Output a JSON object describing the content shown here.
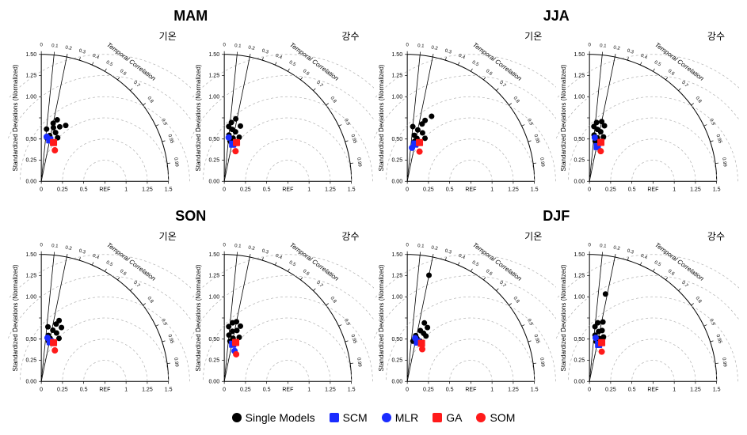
{
  "figure": {
    "type": "taylor-diagram-grid",
    "rows": 2,
    "cols": 4,
    "aspect": "square",
    "row_titles": [
      {
        "label": "MAM",
        "fontsize": 18,
        "fontweight": "bold",
        "span": 2
      },
      {
        "label": "JJA",
        "fontsize": 18,
        "fontweight": "bold",
        "span": 2
      },
      {
        "label": "SON",
        "fontsize": 18,
        "fontweight": "bold",
        "span": 2
      },
      {
        "label": "DJF",
        "fontsize": 18,
        "fontweight": "bold",
        "span": 2
      }
    ],
    "panel_labels": {
      "temp": "기온",
      "precip": "강수",
      "fontsize": 12
    },
    "axes": {
      "radial": {
        "label": "Standardized Deviations (Normalized)",
        "label_fontsize": 8,
        "ticks": [
          0.0,
          0.25,
          0.5,
          "REF",
          1.0,
          1.25,
          1.5
        ],
        "tick_values": [
          0.0,
          0.25,
          0.5,
          0.75,
          1.0,
          1.25,
          1.5
        ],
        "tick_fontsize": 7,
        "color": "#000000",
        "ref_value": 0.75
      },
      "angular": {
        "label": "Temporal Correlation",
        "label_fontsize": 8,
        "ticks": [
          0.0,
          0.1,
          0.2,
          0.3,
          0.4,
          0.5,
          0.6,
          0.7,
          0.8,
          0.9,
          0.95,
          0.99
        ],
        "tick_fontsize": 6,
        "color": "#000000"
      },
      "rmse_arcs": {
        "values": [
          0.25,
          0.5,
          0.75,
          1.0,
          1.25,
          1.5
        ],
        "stroke": "#b0b0b0",
        "dash": "3,3",
        "linewidth": 0.7
      },
      "corr_spokes": {
        "solid_at": [
          0.1,
          0.2
        ],
        "stroke": "#000000",
        "linewidth": 0.8
      },
      "outer_arc": {
        "stroke": "#000000",
        "linewidth": 1.0
      },
      "background": "#ffffff"
    },
    "series_styles": {
      "single": {
        "shape": "circle",
        "fill": "#000000",
        "size": 7
      },
      "scm": {
        "shape": "square",
        "fill": "#1a2cff",
        "size": 9
      },
      "mlr": {
        "shape": "circle",
        "fill": "#1a2cff",
        "size": 8
      },
      "ga": {
        "shape": "square",
        "fill": "#ff1a1a",
        "size": 9
      },
      "som": {
        "shape": "circle",
        "fill": "#ff1a1a",
        "size": 8
      }
    },
    "legend": {
      "items": [
        {
          "key": "single",
          "label": "Single Models"
        },
        {
          "key": "scm",
          "label": "SCM"
        },
        {
          "key": "mlr",
          "label": "MLR"
        },
        {
          "key": "ga",
          "label": "GA"
        },
        {
          "key": "som",
          "label": "SOM"
        }
      ],
      "fontsize": 14
    },
    "panels": [
      {
        "row": 0,
        "col": 0,
        "group": "MAM",
        "var": "temp",
        "single": [
          {
            "sd": 0.55,
            "corr": 0.18
          },
          {
            "sd": 0.62,
            "corr": 0.1
          },
          {
            "sd": 0.6,
            "corr": 0.28
          },
          {
            "sd": 0.7,
            "corr": 0.2
          },
          {
            "sd": 0.68,
            "corr": 0.32
          },
          {
            "sd": 0.72,
            "corr": 0.4
          },
          {
            "sd": 0.55,
            "corr": 0.35
          },
          {
            "sd": 0.65,
            "corr": 0.22
          },
          {
            "sd": 0.52,
            "corr": 0.12
          },
          {
            "sd": 0.75,
            "corr": 0.25
          }
        ],
        "scm": {
          "sd": 0.5,
          "corr": 0.2
        },
        "mlr": {
          "sd": 0.53,
          "corr": 0.12
        },
        "ga": {
          "sd": 0.48,
          "corr": 0.3
        },
        "som": {
          "sd": 0.4,
          "corr": 0.4
        }
      },
      {
        "row": 0,
        "col": 1,
        "group": "MAM",
        "var": "precip",
        "single": [
          {
            "sd": 0.55,
            "corr": 0.1
          },
          {
            "sd": 0.62,
            "corr": 0.15
          },
          {
            "sd": 0.6,
            "corr": 0.22
          },
          {
            "sd": 0.7,
            "corr": 0.12
          },
          {
            "sd": 0.68,
            "corr": 0.28
          },
          {
            "sd": 0.52,
            "corr": 0.2
          },
          {
            "sd": 0.55,
            "corr": 0.32
          },
          {
            "sd": 0.65,
            "corr": 0.08
          },
          {
            "sd": 0.48,
            "corr": 0.14
          },
          {
            "sd": 0.75,
            "corr": 0.18
          }
        ],
        "scm": {
          "sd": 0.45,
          "corr": 0.22
        },
        "mlr": {
          "sd": 0.52,
          "corr": 0.1
        },
        "ga": {
          "sd": 0.48,
          "corr": 0.3
        },
        "som": {
          "sd": 0.38,
          "corr": 0.35
        }
      },
      {
        "row": 0,
        "col": 2,
        "group": "JJA",
        "var": "temp",
        "single": [
          {
            "sd": 0.55,
            "corr": 0.15
          },
          {
            "sd": 0.62,
            "corr": 0.2
          },
          {
            "sd": 0.6,
            "corr": 0.3
          },
          {
            "sd": 0.7,
            "corr": 0.25
          },
          {
            "sd": 0.82,
            "corr": 0.35
          },
          {
            "sd": 0.52,
            "corr": 0.22
          },
          {
            "sd": 0.55,
            "corr": 0.38
          },
          {
            "sd": 0.65,
            "corr": 0.1
          },
          {
            "sd": 0.48,
            "corr": 0.18
          },
          {
            "sd": 0.75,
            "corr": 0.28
          }
        ],
        "scm": {
          "sd": 0.45,
          "corr": 0.2
        },
        "mlr": {
          "sd": 0.4,
          "corr": 0.14
        },
        "ga": {
          "sd": 0.48,
          "corr": 0.3
        },
        "som": {
          "sd": 0.38,
          "corr": 0.38
        }
      },
      {
        "row": 0,
        "col": 3,
        "group": "JJA",
        "var": "precip",
        "single": [
          {
            "sd": 0.55,
            "corr": 0.1
          },
          {
            "sd": 0.62,
            "corr": 0.15
          },
          {
            "sd": 0.6,
            "corr": 0.22
          },
          {
            "sd": 0.7,
            "corr": 0.12
          },
          {
            "sd": 0.68,
            "corr": 0.26
          },
          {
            "sd": 0.52,
            "corr": 0.18
          },
          {
            "sd": 0.55,
            "corr": 0.3
          },
          {
            "sd": 0.65,
            "corr": 0.08
          },
          {
            "sd": 0.48,
            "corr": 0.14
          },
          {
            "sd": 0.72,
            "corr": 0.2
          }
        ],
        "scm": {
          "sd": 0.42,
          "corr": 0.22
        },
        "mlr": {
          "sd": 0.52,
          "corr": 0.12
        },
        "ga": {
          "sd": 0.48,
          "corr": 0.28
        },
        "som": {
          "sd": 0.38,
          "corr": 0.35
        }
      },
      {
        "row": 1,
        "col": 0,
        "group": "SON",
        "var": "temp",
        "single": [
          {
            "sd": 0.55,
            "corr": 0.15
          },
          {
            "sd": 0.62,
            "corr": 0.22
          },
          {
            "sd": 0.6,
            "corr": 0.3
          },
          {
            "sd": 0.7,
            "corr": 0.25
          },
          {
            "sd": 0.68,
            "corr": 0.35
          },
          {
            "sd": 0.52,
            "corr": 0.2
          },
          {
            "sd": 0.55,
            "corr": 0.38
          },
          {
            "sd": 0.65,
            "corr": 0.12
          },
          {
            "sd": 0.48,
            "corr": 0.18
          },
          {
            "sd": 0.75,
            "corr": 0.28
          }
        ],
        "scm": {
          "sd": 0.48,
          "corr": 0.22
        },
        "mlr": {
          "sd": 0.52,
          "corr": 0.14
        },
        "ga": {
          "sd": 0.48,
          "corr": 0.3
        },
        "som": {
          "sd": 0.4,
          "corr": 0.4
        }
      },
      {
        "row": 1,
        "col": 1,
        "group": "SON",
        "var": "precip",
        "single": [
          {
            "sd": 0.55,
            "corr": 0.1
          },
          {
            "sd": 0.6,
            "corr": 0.16
          },
          {
            "sd": 0.62,
            "corr": 0.24
          },
          {
            "sd": 0.7,
            "corr": 0.14
          },
          {
            "sd": 0.68,
            "corr": 0.28
          },
          {
            "sd": 0.52,
            "corr": 0.2
          },
          {
            "sd": 0.55,
            "corr": 0.32
          },
          {
            "sd": 0.65,
            "corr": 0.08
          },
          {
            "sd": 0.48,
            "corr": 0.14
          },
          {
            "sd": 0.72,
            "corr": 0.2
          }
        ],
        "scm": {
          "sd": 0.45,
          "corr": 0.22
        },
        "mlr": {
          "sd": 0.38,
          "corr": 0.32
        },
        "ga": {
          "sd": 0.48,
          "corr": 0.28
        },
        "som": {
          "sd": 0.35,
          "corr": 0.4
        }
      },
      {
        "row": 1,
        "col": 2,
        "group": "DJF",
        "var": "temp",
        "single": [
          {
            "sd": 0.55,
            "corr": 0.18
          },
          {
            "sd": 0.62,
            "corr": 0.25
          },
          {
            "sd": 0.6,
            "corr": 0.32
          },
          {
            "sd": 0.72,
            "corr": 0.28
          },
          {
            "sd": 1.28,
            "corr": 0.2
          },
          {
            "sd": 0.52,
            "corr": 0.22
          },
          {
            "sd": 0.58,
            "corr": 0.38
          },
          {
            "sd": 0.48,
            "corr": 0.14
          },
          {
            "sd": 0.5,
            "corr": 0.3
          },
          {
            "sd": 0.68,
            "corr": 0.35
          }
        ],
        "scm": {
          "sd": 0.48,
          "corr": 0.25
        },
        "mlr": {
          "sd": 0.52,
          "corr": 0.18
        },
        "ga": {
          "sd": 0.48,
          "corr": 0.35
        },
        "som": {
          "sd": 0.42,
          "corr": 0.42
        }
      },
      {
        "row": 1,
        "col": 3,
        "group": "DJF",
        "var": "precip",
        "single": [
          {
            "sd": 0.55,
            "corr": 0.12
          },
          {
            "sd": 0.6,
            "corr": 0.18
          },
          {
            "sd": 0.62,
            "corr": 0.24
          },
          {
            "sd": 0.7,
            "corr": 0.14
          },
          {
            "sd": 1.05,
            "corr": 0.18
          },
          {
            "sd": 0.52,
            "corr": 0.22
          },
          {
            "sd": 0.55,
            "corr": 0.3
          },
          {
            "sd": 0.65,
            "corr": 0.1
          },
          {
            "sd": 0.48,
            "corr": 0.16
          },
          {
            "sd": 0.72,
            "corr": 0.22
          }
        ],
        "scm": {
          "sd": 0.45,
          "corr": 0.24
        },
        "mlr": {
          "sd": 0.52,
          "corr": 0.14
        },
        "ga": {
          "sd": 0.48,
          "corr": 0.3
        },
        "som": {
          "sd": 0.38,
          "corr": 0.38
        }
      }
    ]
  }
}
